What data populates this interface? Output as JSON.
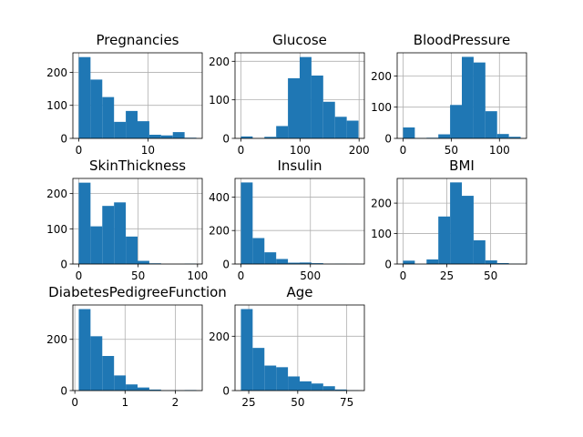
{
  "chart_data": [
    {
      "type": "bar",
      "title": "Pregnancies",
      "bins": [
        0.0,
        1.7,
        3.4,
        5.1,
        6.8,
        8.5,
        10.2,
        11.9,
        13.6,
        15.3,
        17.0
      ],
      "counts": [
        246,
        178,
        125,
        50,
        83,
        52,
        11,
        9,
        19,
        2
      ],
      "xlim": [
        -0.85,
        17.85
      ],
      "ylim": [
        0,
        259
      ],
      "xticks": [
        0,
        10
      ],
      "yticks": [
        0,
        100,
        200
      ],
      "grid": true,
      "bar_color": "#1f77b4"
    },
    {
      "type": "bar",
      "title": "Glucose",
      "bins": [
        0,
        19.9,
        39.8,
        59.7,
        79.6,
        99.5,
        119.4,
        139.3,
        159.2,
        179.1,
        199
      ],
      "counts": [
        5,
        0,
        4,
        32,
        156,
        211,
        163,
        95,
        56,
        46
      ],
      "xlim": [
        -9.95,
        208.95
      ],
      "ylim": [
        0,
        222
      ],
      "xticks": [
        0,
        100,
        200
      ],
      "yticks": [
        0,
        100,
        200
      ],
      "grid": true,
      "bar_color": "#1f77b4"
    },
    {
      "type": "bar",
      "title": "BloodPressure",
      "bins": [
        0,
        12.2,
        24.4,
        36.6,
        48.8,
        61.0,
        73.2,
        85.4,
        97.6,
        109.8,
        122
      ],
      "counts": [
        35,
        1,
        2,
        13,
        107,
        261,
        243,
        87,
        14,
        5
      ],
      "xlim": [
        -6.1,
        128.1
      ],
      "ylim": [
        0,
        274
      ],
      "xticks": [
        0,
        50,
        100
      ],
      "yticks": [
        0,
        100,
        200
      ],
      "grid": true,
      "bar_color": "#1f77b4"
    },
    {
      "type": "bar",
      "title": "SkinThickness",
      "bins": [
        0,
        9.9,
        19.8,
        29.7,
        39.6,
        49.5,
        59.4,
        69.3,
        79.2,
        89.1,
        99
      ],
      "counts": [
        231,
        107,
        165,
        175,
        78,
        9,
        2,
        0,
        0,
        1
      ],
      "xlim": [
        -4.95,
        103.95
      ],
      "ylim": [
        0,
        243
      ],
      "xticks": [
        0,
        50,
        100
      ],
      "yticks": [
        0,
        100,
        200
      ],
      "grid": true,
      "bar_color": "#1f77b4"
    },
    {
      "type": "bar",
      "title": "Insulin",
      "bins": [
        0,
        84.6,
        169.2,
        253.8,
        338.4,
        423.0,
        507.6,
        592.2,
        676.8,
        761.4,
        846
      ],
      "counts": [
        487,
        155,
        70,
        30,
        8,
        9,
        5,
        1,
        2,
        1
      ],
      "xlim": [
        -42.3,
        888.3
      ],
      "ylim": [
        0,
        511
      ],
      "xticks": [
        0,
        500
      ],
      "yticks": [
        0,
        200,
        400
      ],
      "grid": true,
      "bar_color": "#1f77b4"
    },
    {
      "type": "bar",
      "title": "BMI",
      "bins": [
        0,
        6.71,
        13.42,
        20.13,
        26.84,
        33.55,
        40.26,
        46.97,
        53.68,
        60.39,
        67.1
      ],
      "counts": [
        11,
        0,
        15,
        156,
        268,
        224,
        78,
        12,
        3,
        1
      ],
      "xlim": [
        -3.355,
        70.455
      ],
      "ylim": [
        0,
        281
      ],
      "xticks": [
        0,
        25,
        50
      ],
      "yticks": [
        0,
        100,
        200
      ],
      "grid": true,
      "bar_color": "#1f77b4"
    },
    {
      "type": "bar",
      "title": "DiabetesPedigreeFunction",
      "bins": [
        0.078,
        0.3122,
        0.5464,
        0.7806,
        1.0148,
        1.249,
        1.4832,
        1.7174,
        1.9516,
        2.1858,
        2.42
      ],
      "counts": [
        318,
        212,
        135,
        59,
        24,
        12,
        4,
        1,
        1,
        2
      ],
      "xlim": [
        -0.0391,
        2.5371
      ],
      "ylim": [
        0,
        334
      ],
      "xticks": [
        0,
        1,
        2
      ],
      "yticks": [
        0,
        200
      ],
      "grid": true,
      "bar_color": "#1f77b4"
    },
    {
      "type": "bar",
      "title": "Age",
      "bins": [
        21,
        27,
        33,
        39,
        45,
        51,
        57,
        63,
        69,
        75,
        81
      ],
      "counts": [
        300,
        157,
        92,
        86,
        52,
        34,
        26,
        16,
        4,
        1
      ],
      "xlim": [
        18,
        84
      ],
      "ylim": [
        0,
        315
      ],
      "xticks": [
        25,
        50,
        75
      ],
      "yticks": [
        0,
        200
      ],
      "grid": true,
      "bar_color": "#1f77b4"
    }
  ]
}
